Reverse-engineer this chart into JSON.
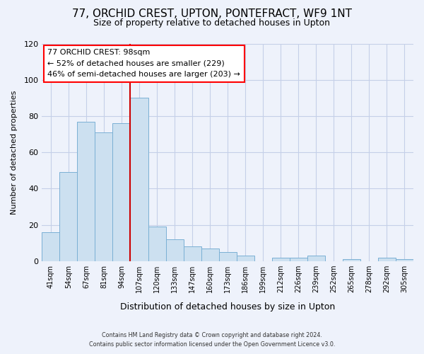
{
  "title": "77, ORCHID CREST, UPTON, PONTEFRACT, WF9 1NT",
  "subtitle": "Size of property relative to detached houses in Upton",
  "xlabel": "Distribution of detached houses by size in Upton",
  "ylabel": "Number of detached properties",
  "footer_line1": "Contains HM Land Registry data © Crown copyright and database right 2024.",
  "footer_line2": "Contains public sector information licensed under the Open Government Licence v3.0.",
  "bar_labels": [
    "41sqm",
    "54sqm",
    "67sqm",
    "81sqm",
    "94sqm",
    "107sqm",
    "120sqm",
    "133sqm",
    "147sqm",
    "160sqm",
    "173sqm",
    "186sqm",
    "199sqm",
    "212sqm",
    "226sqm",
    "239sqm",
    "252sqm",
    "265sqm",
    "278sqm",
    "292sqm",
    "305sqm"
  ],
  "bar_values": [
    16,
    49,
    77,
    71,
    76,
    90,
    19,
    12,
    8,
    7,
    5,
    3,
    0,
    2,
    2,
    3,
    0,
    1,
    0,
    2,
    1
  ],
  "bar_color": "#cce0f0",
  "bar_edge_color": "#7ab0d4",
  "ylim": [
    0,
    120
  ],
  "yticks": [
    0,
    20,
    40,
    60,
    80,
    100,
    120
  ],
  "property_line_x": 4.5,
  "property_label": "77 ORCHID CREST: 98sqm",
  "annotation_line1": "← 52% of detached houses are smaller (229)",
  "annotation_line2": "46% of semi-detached houses are larger (203) →",
  "background_color": "#eef2fb",
  "plot_background": "#eef2fb",
  "grid_color": "#c5cfe8",
  "title_fontsize": 11,
  "subtitle_fontsize": 9,
  "red_line_color": "#cc0000"
}
